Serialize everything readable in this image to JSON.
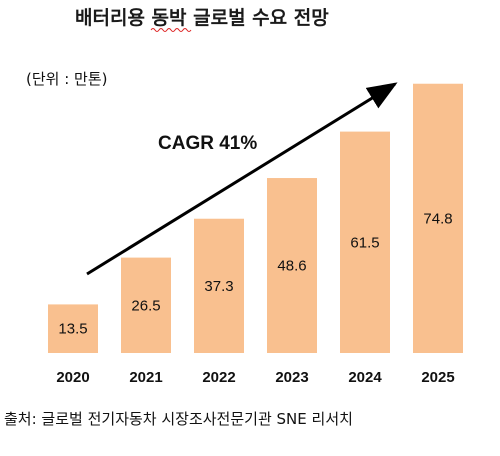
{
  "chart_data": {
    "type": "bar",
    "title": "배터리용 동박 글로벌 수요 전망",
    "unit_label": "(단위 : 만톤)",
    "annotation": "CAGR 41%",
    "categories": [
      "2020",
      "2021",
      "2022",
      "2023",
      "2024",
      "2025"
    ],
    "values": [
      13.5,
      26.5,
      37.3,
      48.6,
      61.5,
      74.8
    ],
    "value_labels": [
      "13.5",
      "26.5",
      "37.3",
      "48.6",
      "61.5",
      "74.8"
    ],
    "ylim": [
      0,
      78
    ],
    "grid": false,
    "legend": "none",
    "bar_color": "#f9c08f",
    "source": "출처: 글로벌 전기자동차 시장조사전문기관 SNE 리서치"
  }
}
